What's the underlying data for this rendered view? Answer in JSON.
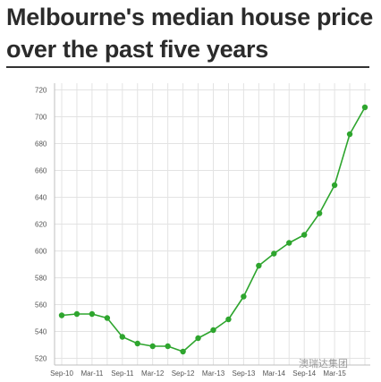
{
  "title_line1": "Melbourne's median house price",
  "title_line2": "over the past five years",
  "watermark": "澳瑞达集团",
  "colors": {
    "line": "#2ea52e",
    "grid": "#e3e3e3",
    "axis": "#bfbfbf",
    "title": "#2b2b2b"
  },
  "chart_data": {
    "type": "line",
    "title": "Melbourne's median house price over the past five years",
    "xlabel": "",
    "ylabel": "",
    "x_tick_labels": [
      "Sep-10",
      "Mar-11",
      "Sep-11",
      "Mar-12",
      "Sep-12",
      "Mar-13",
      "Sep-13",
      "Mar-14",
      "Sep-14",
      "Mar-15"
    ],
    "y_ticks": [
      520,
      540,
      560,
      580,
      600,
      620,
      640,
      660,
      680,
      700,
      720
    ],
    "ylim": [
      515,
      725
    ],
    "grid": true,
    "legend": "none",
    "series": [
      {
        "values": [
          552,
          553,
          553,
          550,
          536,
          531,
          529,
          529,
          525,
          535,
          541,
          549,
          566,
          589,
          598,
          606,
          612,
          628,
          649,
          687,
          707
        ]
      }
    ]
  }
}
